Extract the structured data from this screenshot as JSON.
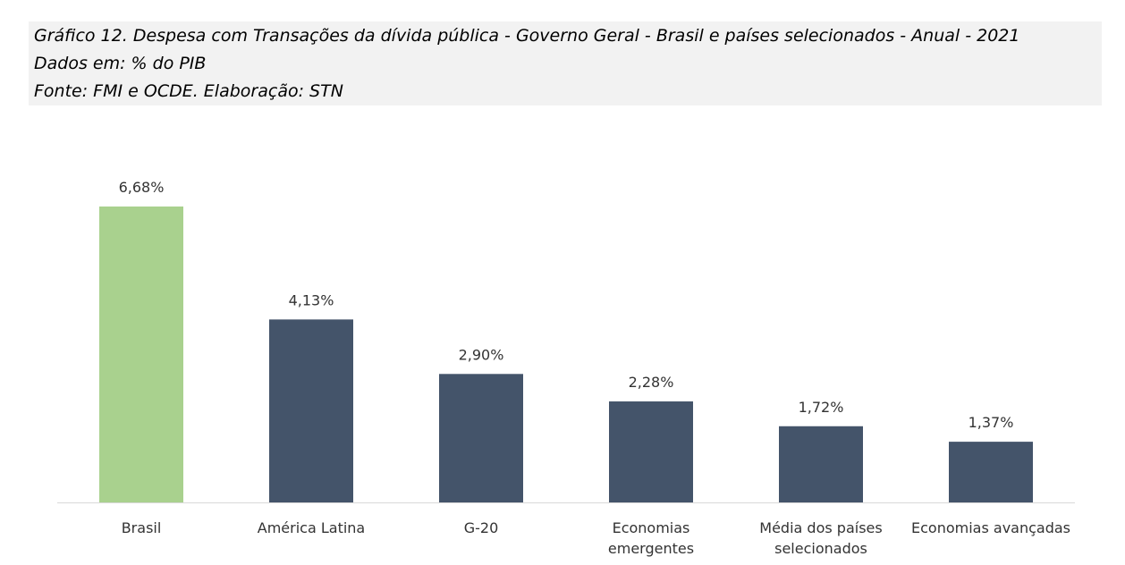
{
  "header": {
    "title": "Gráfico 12. Despesa com Transações da dívida pública - Governo Geral - Brasil e países selecionados - Anual - 2021",
    "units": "Dados em:  % do PIB",
    "source": "Fonte: FMI e OCDE. Elaboração: STN"
  },
  "chart_data": {
    "type": "bar",
    "categories": [
      [
        "Brasil"
      ],
      [
        "América Latina"
      ],
      [
        "G-20"
      ],
      [
        "Economias",
        "emergentes"
      ],
      [
        "Média dos países",
        "selecionados"
      ],
      [
        "Economias avançadas"
      ]
    ],
    "values": [
      6.68,
      4.13,
      2.9,
      2.28,
      1.72,
      1.37
    ],
    "data_labels": [
      "6,68%",
      "4,13%",
      "2,90%",
      "2,28%",
      "1,72%",
      "1,37%"
    ],
    "colors": [
      "#a9d18e",
      "#44546a",
      "#44546a",
      "#44546a",
      "#44546a",
      "#44546a"
    ],
    "axis_color": "#d9d9d9",
    "ylim": [
      0,
      6.68
    ],
    "grid": false,
    "legend": "none"
  }
}
